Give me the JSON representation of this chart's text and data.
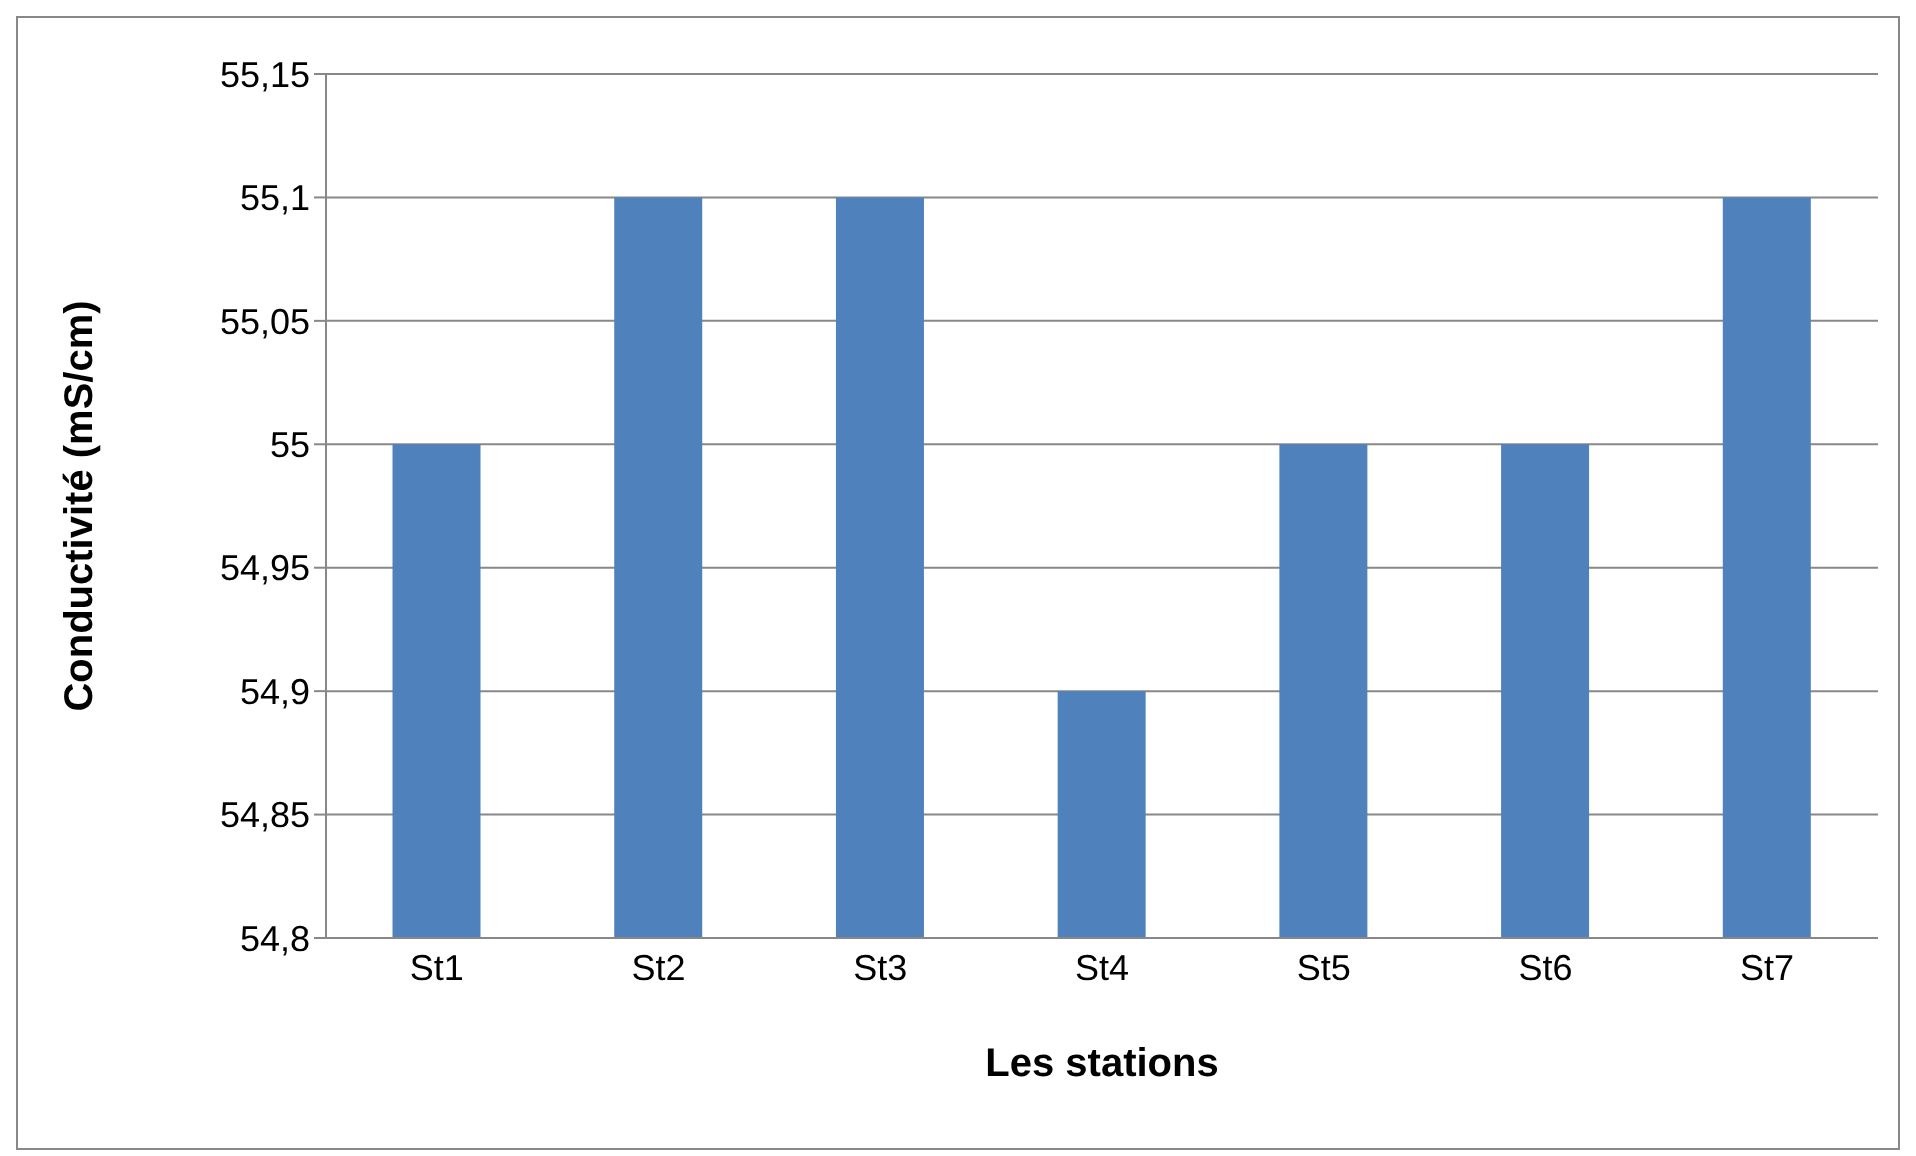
{
  "chart_data": {
    "type": "bar",
    "xlabel": "Les stations",
    "ylabel": "Conductivité (mS/cm)",
    "categories": [
      "St1",
      "St2",
      "St3",
      "St4",
      "St5",
      "St6",
      "St7"
    ],
    "values": [
      55,
      55.1,
      55.1,
      54.9,
      55,
      55,
      55.1
    ],
    "color": "#4f81bd",
    "ylim": [
      54.8,
      55.15
    ],
    "yticks": [
      {
        "value": 54.8,
        "label": "54,8"
      },
      {
        "value": 54.85,
        "label": "54,85"
      },
      {
        "value": 54.9,
        "label": "54,9"
      },
      {
        "value": 54.95,
        "label": "54,95"
      },
      {
        "value": 55,
        "label": "55"
      },
      {
        "value": 55.05,
        "label": "55,05"
      },
      {
        "value": 55.1,
        "label": "55,1"
      },
      {
        "value": 55.15,
        "label": "55,15"
      }
    ],
    "grid": "y",
    "legend": false
  }
}
